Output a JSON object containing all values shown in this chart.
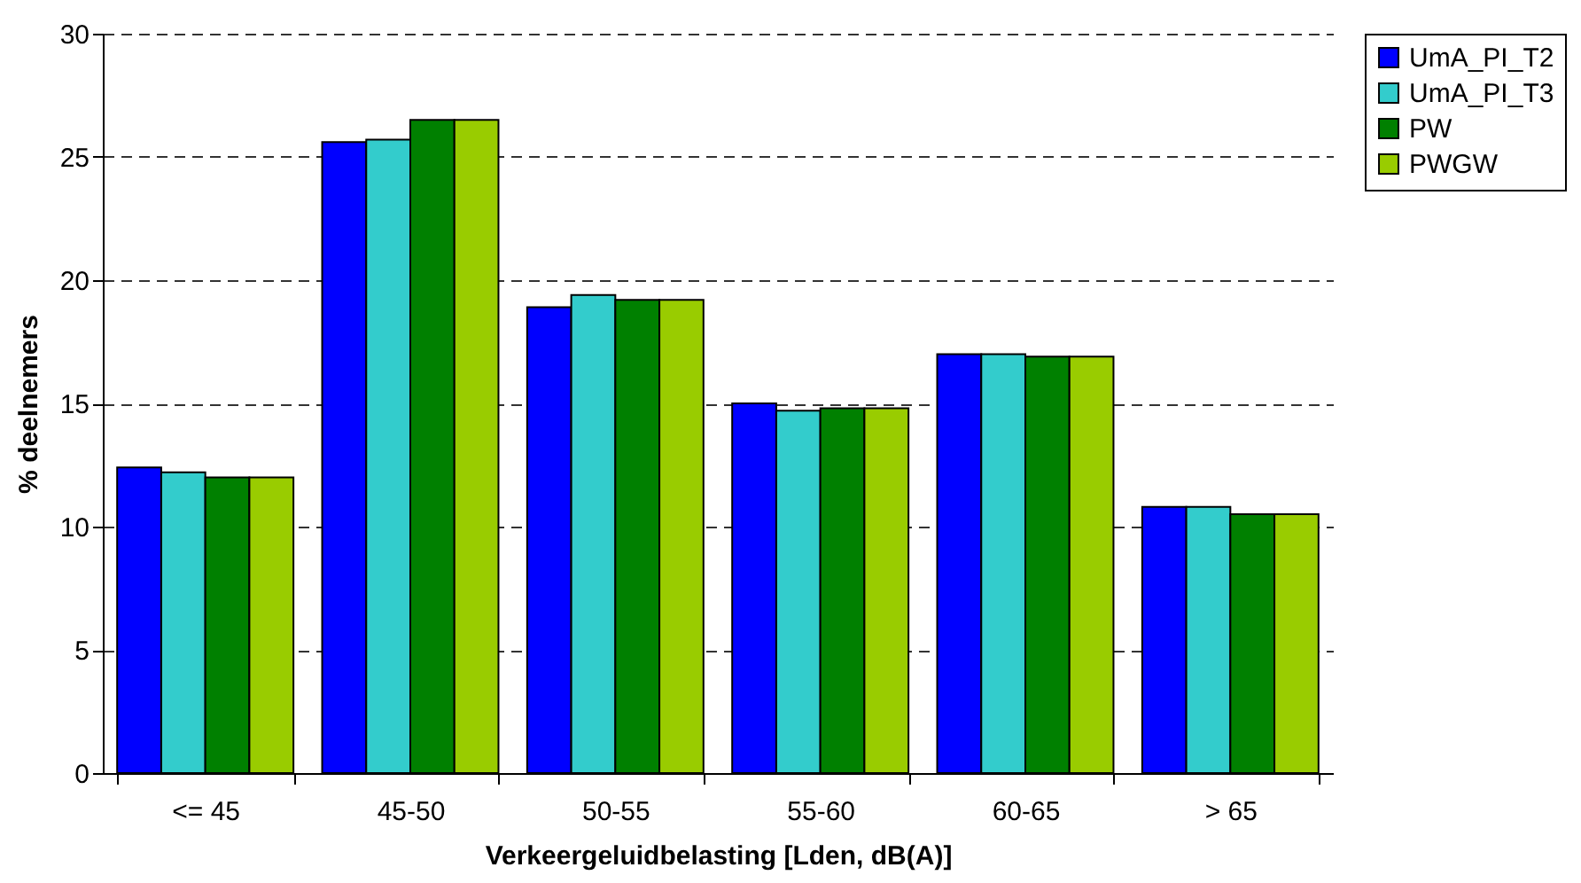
{
  "chart_data": {
    "type": "bar",
    "xlabel": "Verkeergeluidbelasting [Lden, dB(A)]",
    "ylabel": "% deelnemers",
    "categories": [
      "<= 45",
      "45-50",
      "50-55",
      "55-60",
      "60-65",
      "> 65"
    ],
    "series": [
      {
        "name": "UmA_PI_T2",
        "color": "#0000ff",
        "values": [
          12.4,
          25.6,
          18.9,
          15.0,
          17.0,
          10.8
        ]
      },
      {
        "name": "UmA_PI_T3",
        "color": "#33cccc",
        "values": [
          12.2,
          25.7,
          19.4,
          14.7,
          17.0,
          10.8
        ]
      },
      {
        "name": "PW",
        "color": "#008000",
        "values": [
          12.0,
          26.5,
          19.2,
          14.8,
          16.9,
          10.5
        ]
      },
      {
        "name": "PWGW",
        "color": "#99cc00",
        "values": [
          12.0,
          26.5,
          19.2,
          14.8,
          16.9,
          10.5
        ]
      }
    ],
    "ylim": [
      0,
      30
    ],
    "yticks": [
      0,
      5,
      10,
      15,
      20,
      25,
      30
    ],
    "grid": "y",
    "legend": "right"
  }
}
